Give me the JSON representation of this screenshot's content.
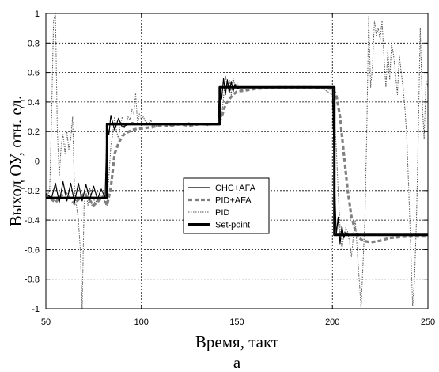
{
  "chart_data": {
    "type": "line",
    "xlabel": "Время, такт",
    "ylabel": "Выход ОУ, отн. ед.",
    "caption": "а",
    "xlim": [
      50,
      250
    ],
    "ylim": [
      -1,
      1
    ],
    "xticks": [
      50,
      100,
      150,
      200,
      250
    ],
    "yticks": [
      -1,
      -0.8,
      -0.6,
      -0.4,
      -0.2,
      0,
      0.2,
      0.4,
      0.6,
      0.8,
      1
    ],
    "xtick_labels": [
      "50",
      "100",
      "150",
      "200",
      "250"
    ],
    "ytick_labels": [
      "-1",
      "-0.8",
      "-0.6",
      "-0.4",
      "-0.2",
      "0",
      "0.2",
      "0.4",
      "0.6",
      "0.8",
      "1"
    ],
    "grid": true,
    "legend_position": "center",
    "series": [
      {
        "name": "CHC+AFA",
        "style": "solid-thin",
        "x": [
          50,
          53,
          55,
          57,
          59,
          61,
          63,
          65,
          67,
          69,
          71,
          73,
          75,
          77,
          79,
          81,
          82,
          83,
          84,
          86,
          88,
          90,
          95,
          100,
          110,
          120,
          130,
          140,
          141,
          142,
          143,
          144,
          145,
          146,
          147,
          148,
          149,
          150,
          152,
          155,
          160,
          170,
          180,
          190,
          200,
          201,
          202,
          203,
          204,
          205,
          206,
          207,
          208,
          210,
          220,
          230,
          240,
          250
        ],
        "y": [
          -0.22,
          -0.25,
          -0.15,
          -0.28,
          -0.14,
          -0.27,
          -0.15,
          -0.28,
          -0.15,
          -0.27,
          -0.16,
          -0.26,
          -0.17,
          -0.26,
          -0.19,
          -0.25,
          0.25,
          0.18,
          0.31,
          0.21,
          0.29,
          0.23,
          0.26,
          0.25,
          0.25,
          0.25,
          0.25,
          0.25,
          0.5,
          0.42,
          0.56,
          0.45,
          0.55,
          0.46,
          0.54,
          0.47,
          0.52,
          0.49,
          0.5,
          0.5,
          0.5,
          0.5,
          0.5,
          0.5,
          0.5,
          -0.1,
          -0.5,
          -0.38,
          -0.56,
          -0.44,
          -0.52,
          -0.48,
          -0.5,
          -0.5,
          -0.5,
          -0.5,
          -0.5,
          -0.5
        ]
      },
      {
        "name": "PID+AFA",
        "style": "dashed-thick",
        "x": [
          50,
          55,
          60,
          65,
          70,
          75,
          80,
          82,
          84,
          86,
          88,
          90,
          92,
          95,
          98,
          100,
          105,
          110,
          115,
          120,
          125,
          130,
          135,
          140,
          142,
          144,
          146,
          148,
          150,
          155,
          160,
          170,
          180,
          190,
          200,
          202,
          204,
          206,
          208,
          210,
          212,
          214,
          216,
          220,
          225,
          230,
          240,
          250
        ],
        "y": [
          -0.23,
          -0.28,
          -0.21,
          -0.29,
          -0.22,
          -0.3,
          -0.24,
          -0.3,
          -0.18,
          0.05,
          0.12,
          0.17,
          0.19,
          0.21,
          0.22,
          0.22,
          0.23,
          0.24,
          0.24,
          0.25,
          0.24,
          0.25,
          0.25,
          0.25,
          0.3,
          0.38,
          0.42,
          0.45,
          0.47,
          0.48,
          0.49,
          0.5,
          0.5,
          0.5,
          0.49,
          0.45,
          0.3,
          0.05,
          -0.2,
          -0.38,
          -0.47,
          -0.52,
          -0.54,
          -0.55,
          -0.54,
          -0.52,
          -0.51,
          -0.51
        ]
      },
      {
        "name": "PID",
        "style": "dotted-thin",
        "x": [
          50,
          52,
          53,
          54,
          55,
          56,
          57,
          58,
          59,
          60,
          61,
          62,
          63,
          64,
          65,
          66,
          67,
          68,
          69,
          70,
          71,
          72,
          73,
          74,
          75,
          76,
          77,
          78,
          80,
          82,
          84,
          85,
          86,
          87,
          88,
          89,
          90,
          91,
          92,
          93,
          94,
          95,
          96,
          97,
          98,
          99,
          100,
          101,
          102,
          103,
          104,
          105,
          106,
          108,
          110,
          115,
          120,
          125,
          130,
          135,
          140,
          142,
          143,
          144,
          145,
          146,
          147,
          148,
          149,
          150,
          152,
          155,
          160,
          165,
          170,
          175,
          180,
          185,
          190,
          195,
          200,
          201,
          202,
          203,
          204,
          205,
          206,
          207,
          208,
          209,
          210,
          211,
          212,
          213,
          214,
          215,
          216,
          217,
          218,
          219,
          220,
          221,
          222,
          223,
          224,
          225,
          226,
          227,
          228,
          229,
          230,
          231,
          232,
          233,
          234,
          235,
          236,
          237,
          238,
          239,
          240,
          241,
          242,
          243,
          244,
          245,
          246,
          247,
          248,
          249,
          250
        ],
        "y": [
          -0.25,
          -0.2,
          0.3,
          0.95,
          1.0,
          0.2,
          -0.1,
          0.1,
          0.18,
          0.05,
          0.2,
          0.08,
          0.15,
          0.3,
          -0.2,
          -0.3,
          -0.4,
          -0.6,
          -1.0,
          -0.3,
          -0.2,
          -0.3,
          -0.18,
          -0.3,
          -0.25,
          -0.3,
          -0.2,
          -0.22,
          -0.25,
          -0.3,
          0.1,
          0.18,
          0.3,
          0.2,
          0.15,
          0.25,
          0.3,
          0.22,
          0.25,
          0.3,
          0.28,
          0.35,
          0.32,
          0.46,
          0.25,
          0.32,
          0.28,
          0.3,
          0.27,
          0.26,
          0.24,
          0.28,
          0.22,
          0.24,
          0.25,
          0.24,
          0.25,
          0.26,
          0.25,
          0.24,
          0.25,
          0.3,
          0.43,
          0.58,
          0.5,
          0.55,
          0.45,
          0.57,
          0.5,
          0.53,
          0.48,
          0.5,
          0.5,
          0.5,
          0.5,
          0.5,
          0.5,
          0.5,
          0.5,
          0.49,
          0.45,
          0.3,
          0.1,
          -0.2,
          -0.45,
          -0.6,
          -0.5,
          -0.45,
          -0.48,
          -0.55,
          -0.65,
          -0.5,
          -0.4,
          -0.6,
          -0.8,
          -1.0,
          -0.7,
          -0.4,
          0.2,
          0.98,
          0.5,
          0.65,
          0.95,
          0.85,
          0.9,
          0.82,
          0.95,
          0.7,
          0.5,
          0.75,
          0.55,
          0.8,
          0.72,
          0.6,
          0.45,
          0.72,
          0.6,
          0.5,
          0.35,
          0.15,
          -0.2,
          -0.6,
          -0.98,
          -0.8,
          -0.4,
          0.2,
          0.9,
          0.4,
          0.15,
          0.55,
          0.5
        ]
      },
      {
        "name": "Set-point",
        "style": "solid-thick",
        "x": [
          50,
          82,
          82,
          141,
          141,
          201,
          201,
          250
        ],
        "y": [
          -0.25,
          -0.25,
          0.25,
          0.25,
          0.5,
          0.5,
          -0.5,
          -0.5
        ]
      }
    ]
  }
}
